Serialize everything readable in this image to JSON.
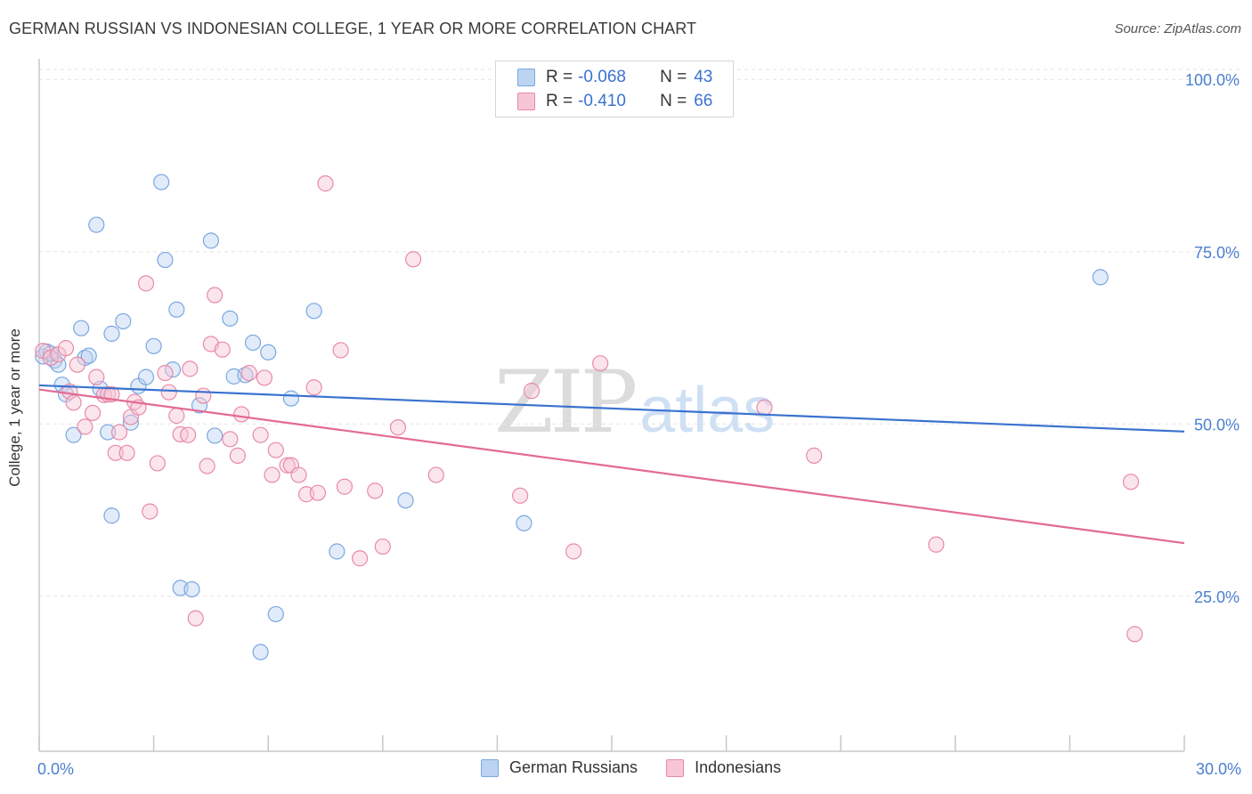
{
  "title": "GERMAN RUSSIAN VS INDONESIAN COLLEGE, 1 YEAR OR MORE CORRELATION CHART",
  "source": "Source: ZipAtlas.com",
  "watermark": {
    "zip": "ZIP",
    "atlas": "atlas"
  },
  "legend": {
    "rows": [
      {
        "r_label": "R =",
        "r_value": "-0.068",
        "n_label": "N =",
        "n_value": "43",
        "color": "#7aa8e0",
        "fill": "#bcd3f2"
      },
      {
        "r_label": "R =",
        "r_value": "-0.410",
        "n_label": "N =",
        "n_value": "66",
        "color": "#e88aa8",
        "fill": "#f7c6d5"
      }
    ]
  },
  "colors": {
    "blue_line": "#3a72d0",
    "pink_line": "#e36a93",
    "blue_point": "#7aa8e0",
    "pink_point": "#e88aa8",
    "axis_text": "#4a7fd0"
  },
  "chart_data": {
    "type": "scatter",
    "title": "GERMAN RUSSIAN VS INDONESIAN COLLEGE, 1 YEAR OR MORE CORRELATION CHART",
    "xlabel": "",
    "ylabel": "College, 1 year or more",
    "xlim": [
      0,
      30
    ],
    "ylim": [
      2.5,
      103
    ],
    "x_tick_labels": [
      "0.0%",
      "30.0%"
    ],
    "y_ticks": [
      25,
      50,
      75,
      100
    ],
    "y_tick_labels": [
      "25.0%",
      "50.0%",
      "75.0%",
      "100.0%"
    ],
    "series": [
      {
        "name": "German Russians",
        "color": "#7aa8e0",
        "trend": [
          [
            0,
            55.6
          ],
          [
            30,
            48.9
          ]
        ],
        "points": [
          [
            0.1,
            59.8
          ],
          [
            0.2,
            60.5
          ],
          [
            0.4,
            59.2
          ],
          [
            0.5,
            58.6
          ],
          [
            0.6,
            55.7
          ],
          [
            0.7,
            54.3
          ],
          [
            0.9,
            48.4
          ],
          [
            1.1,
            63.9
          ],
          [
            1.2,
            59.6
          ],
          [
            1.3,
            59.9
          ],
          [
            1.5,
            78.9
          ],
          [
            1.6,
            55.1
          ],
          [
            1.8,
            48.8
          ],
          [
            1.9,
            63.1
          ],
          [
            2.2,
            64.9
          ],
          [
            2.4,
            50.2
          ],
          [
            2.6,
            55.5
          ],
          [
            2.8,
            56.8
          ],
          [
            3.0,
            61.3
          ],
          [
            3.2,
            85.1
          ],
          [
            3.3,
            73.8
          ],
          [
            3.5,
            57.9
          ],
          [
            3.6,
            66.6
          ],
          [
            3.7,
            26.2
          ],
          [
            4.0,
            26.0
          ],
          [
            4.2,
            52.7
          ],
          [
            4.5,
            76.6
          ],
          [
            4.6,
            48.3
          ],
          [
            5.0,
            65.3
          ],
          [
            5.1,
            56.9
          ],
          [
            5.4,
            57.1
          ],
          [
            5.6,
            61.8
          ],
          [
            5.8,
            16.9
          ],
          [
            6.0,
            60.4
          ],
          [
            6.2,
            22.4
          ],
          [
            6.6,
            53.7
          ],
          [
            7.2,
            66.4
          ],
          [
            7.8,
            31.5
          ],
          [
            9.6,
            38.9
          ],
          [
            12.7,
            35.6
          ],
          [
            1.9,
            36.7
          ],
          [
            27.8,
            71.3
          ],
          [
            0.3,
            60.2
          ]
        ]
      },
      {
        "name": "Indonesians",
        "color": "#e88aa8",
        "trend": [
          [
            0,
            55.0
          ],
          [
            30,
            32.7
          ]
        ],
        "points": [
          [
            0.1,
            60.6
          ],
          [
            0.3,
            59.6
          ],
          [
            0.5,
            60.1
          ],
          [
            0.7,
            61.0
          ],
          [
            0.8,
            54.7
          ],
          [
            0.9,
            53.1
          ],
          [
            1.0,
            58.6
          ],
          [
            1.2,
            49.6
          ],
          [
            1.4,
            51.6
          ],
          [
            1.5,
            56.8
          ],
          [
            1.7,
            54.2
          ],
          [
            1.8,
            54.3
          ],
          [
            2.0,
            45.8
          ],
          [
            2.1,
            48.8
          ],
          [
            2.3,
            45.8
          ],
          [
            2.4,
            51.0
          ],
          [
            2.5,
            53.2
          ],
          [
            2.6,
            52.4
          ],
          [
            2.8,
            70.4
          ],
          [
            2.9,
            37.3
          ],
          [
            3.1,
            44.3
          ],
          [
            3.3,
            57.4
          ],
          [
            3.4,
            54.6
          ],
          [
            3.6,
            51.2
          ],
          [
            3.7,
            48.5
          ],
          [
            3.9,
            48.4
          ],
          [
            3.95,
            58.0
          ],
          [
            4.1,
            21.8
          ],
          [
            4.3,
            54.1
          ],
          [
            4.4,
            43.9
          ],
          [
            4.5,
            61.6
          ],
          [
            4.6,
            68.7
          ],
          [
            4.8,
            60.8
          ],
          [
            5.0,
            47.8
          ],
          [
            5.2,
            45.4
          ],
          [
            5.3,
            51.4
          ],
          [
            5.5,
            57.4
          ],
          [
            5.8,
            48.4
          ],
          [
            5.9,
            56.7
          ],
          [
            6.1,
            42.6
          ],
          [
            6.2,
            46.2
          ],
          [
            6.5,
            44.0
          ],
          [
            6.6,
            44.0
          ],
          [
            6.8,
            42.6
          ],
          [
            7.0,
            39.8
          ],
          [
            7.2,
            55.3
          ],
          [
            7.3,
            40.0
          ],
          [
            7.5,
            84.9
          ],
          [
            7.9,
            60.7
          ],
          [
            8.0,
            40.9
          ],
          [
            8.4,
            30.5
          ],
          [
            8.8,
            40.3
          ],
          [
            9.0,
            32.2
          ],
          [
            9.4,
            49.5
          ],
          [
            9.8,
            73.9
          ],
          [
            10.4,
            42.6
          ],
          [
            12.6,
            39.6
          ],
          [
            12.9,
            54.8
          ],
          [
            14.0,
            31.5
          ],
          [
            14.7,
            58.8
          ],
          [
            19.0,
            52.4
          ],
          [
            20.3,
            45.4
          ],
          [
            23.5,
            32.5
          ],
          [
            28.6,
            41.6
          ],
          [
            28.7,
            19.5
          ],
          [
            1.9,
            54.3
          ]
        ]
      }
    ]
  },
  "bottom_legend": [
    {
      "label": "German Russians",
      "color": "#7aa8e0",
      "fill": "#bcd3f2"
    },
    {
      "label": "Indonesians",
      "color": "#e88aa8",
      "fill": "#f7c6d5"
    }
  ]
}
